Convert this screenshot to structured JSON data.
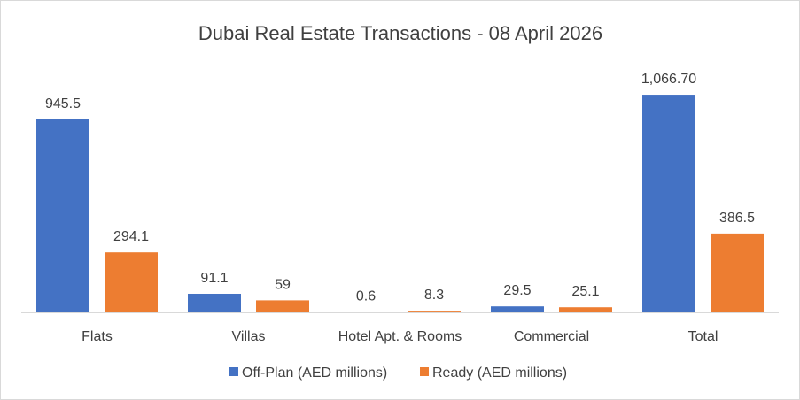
{
  "chart_data": {
    "type": "bar",
    "title": "Dubai Real Estate Transactions - 08 April 2026",
    "categories": [
      "Flats",
      "Villas",
      "Hotel Apt. & Rooms",
      "Commercial",
      "Total"
    ],
    "series": [
      {
        "name": "Off-Plan (AED millions)",
        "color": "#4472C4",
        "values": [
          945.5,
          91.1,
          0.6,
          29.5,
          1066.7
        ],
        "labels": [
          "945.5",
          "91.1",
          "0.6",
          "29.5",
          "1,066.70"
        ]
      },
      {
        "name": "Ready (AED millions)",
        "color": "#ED7D31",
        "values": [
          294.1,
          59,
          8.3,
          25.1,
          386.5
        ],
        "labels": [
          "294.1",
          "59",
          "8.3",
          "25.1",
          "386.5"
        ]
      }
    ],
    "xlabel": "",
    "ylabel": "",
    "ylim": [
      0,
      1250
    ],
    "grid": false,
    "legend": "bottom"
  }
}
